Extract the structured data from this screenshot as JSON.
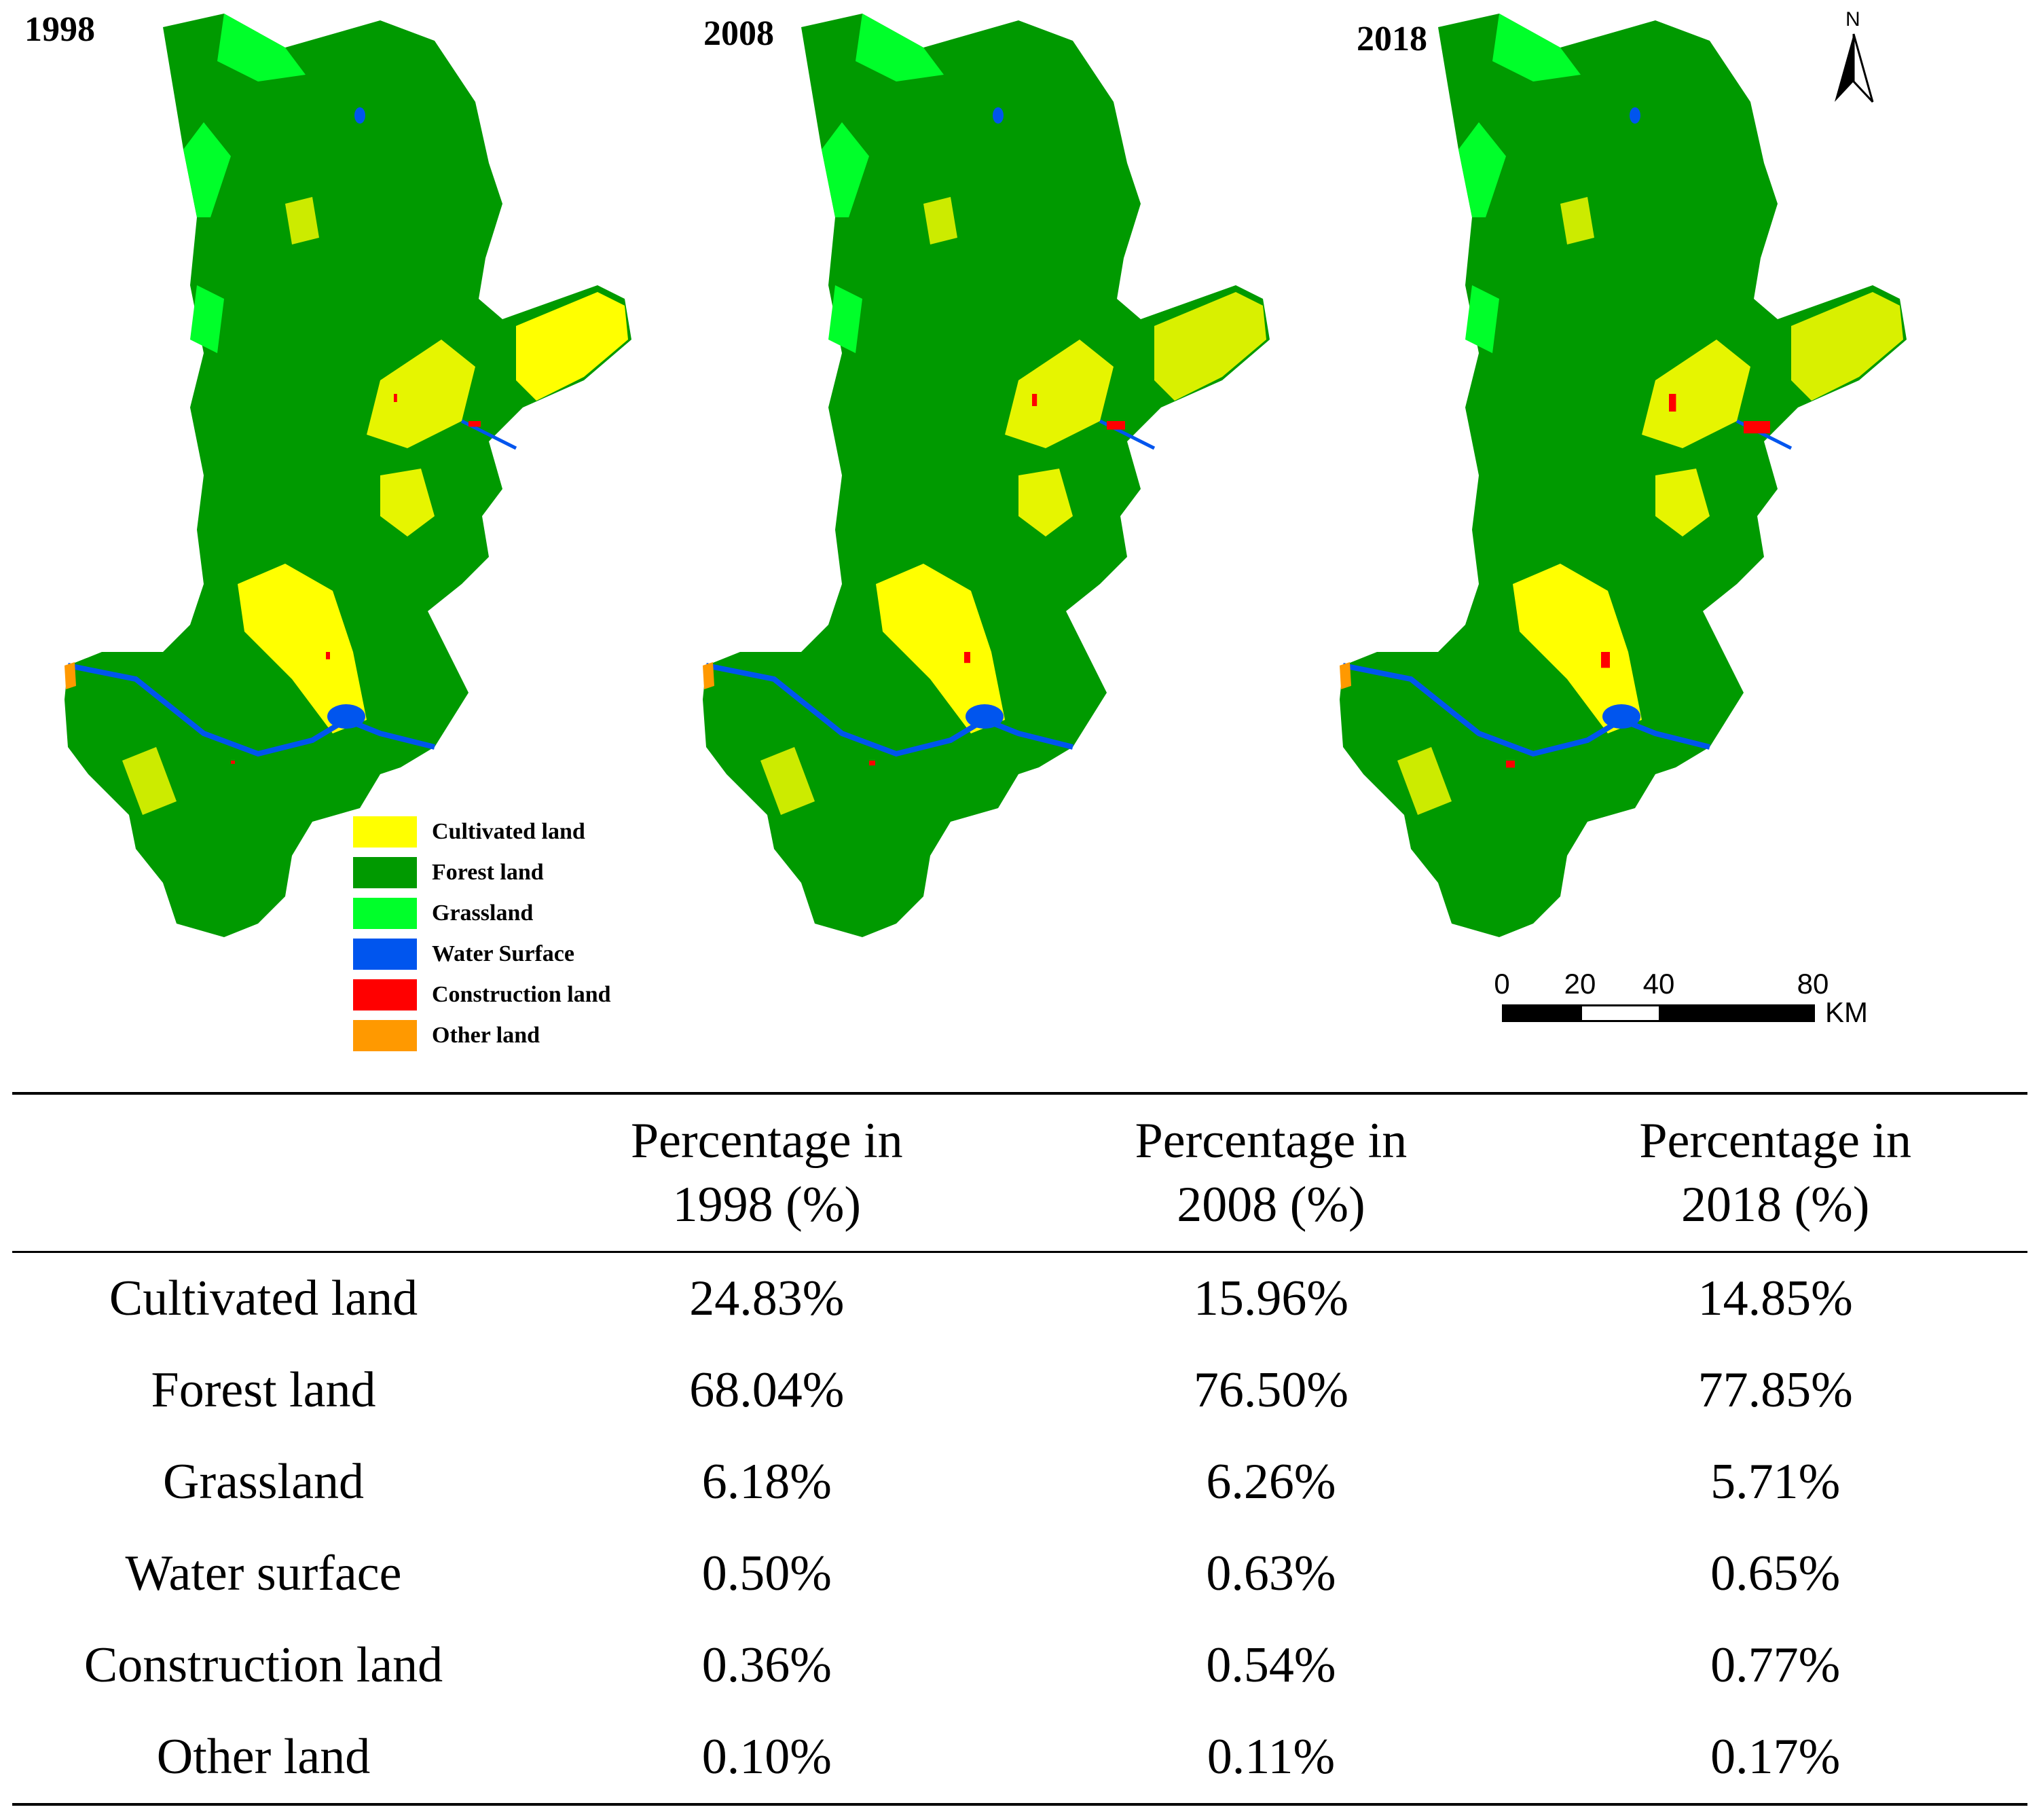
{
  "maps": [
    {
      "year": "1998"
    },
    {
      "year": "2008"
    },
    {
      "year": "2018"
    }
  ],
  "legend": [
    {
      "label": "Cultivated land",
      "color": "#ffff00"
    },
    {
      "label": "Forest land",
      "color": "#009a00"
    },
    {
      "label": "Grassland",
      "color": "#00ff2a"
    },
    {
      "label": "Water Surface",
      "color": "#0055ee"
    },
    {
      "label": "Construction land",
      "color": "#ff0000"
    },
    {
      "label": "Other land",
      "color": "#ff9900"
    }
  ],
  "north_arrow": {
    "label": "N"
  },
  "scale_bar": {
    "ticks": [
      "0",
      "20",
      "40",
      "80"
    ],
    "unit": "KM"
  },
  "table": {
    "headers": [
      "",
      [
        "Percentage in",
        "1998 (%)"
      ],
      [
        "Percentage in",
        "2008 (%)"
      ],
      [
        "Percentage in",
        "2018 (%)"
      ]
    ],
    "rows": [
      [
        "Cultivated land",
        "24.83%",
        "15.96%",
        "14.85%"
      ],
      [
        "Forest land",
        "68.04%",
        "76.50%",
        "77.85%"
      ],
      [
        "Grassland",
        "6.18%",
        "6.26%",
        "5.71%"
      ],
      [
        "Water surface",
        "0.50%",
        "0.63%",
        "0.65%"
      ],
      [
        "Construction land",
        "0.36%",
        "0.54%",
        "0.77%"
      ],
      [
        "Other land",
        "0.10%",
        "0.11%",
        "0.17%"
      ]
    ]
  }
}
